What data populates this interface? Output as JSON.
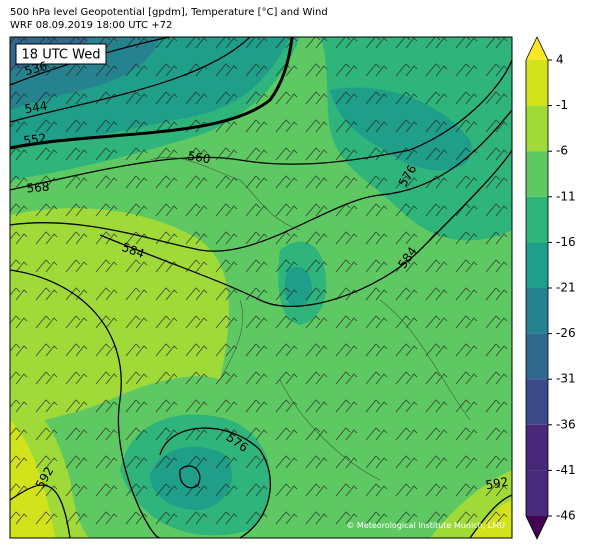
{
  "header": {
    "title": "500 hPa level Geopotential [gpdm], Temperature [°C] and Wind",
    "subtitle": "WRF 08.09.2019 18:00 UTC +72"
  },
  "map": {
    "time_label": "18 UTC Wed",
    "contour_labels": [
      536,
      544,
      552,
      560,
      568,
      584,
      576,
      584,
      576,
      592,
      592
    ],
    "credit": "© Meteorological Institute Munich, LMU"
  },
  "colorbar": {
    "ticks": [
      4,
      -1,
      -6,
      -11,
      -16,
      -21,
      -26,
      -31,
      -36,
      -41,
      -46
    ],
    "colors": [
      "#fde725",
      "#d2e21b",
      "#a0da39",
      "#5ec962",
      "#2fb47c",
      "#1f9e89",
      "#26828e",
      "#31688e",
      "#3e4989",
      "#482878",
      "#472a7a",
      "#440154"
    ]
  }
}
